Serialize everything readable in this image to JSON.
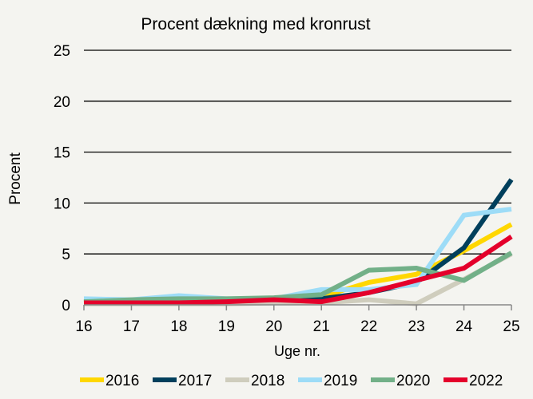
{
  "chart_data": {
    "type": "line",
    "title": "Procent dækning med kronrust",
    "xlabel": "Uge nr.",
    "ylabel": "Procent",
    "x": [
      16,
      17,
      18,
      19,
      20,
      21,
      22,
      23,
      24,
      25
    ],
    "ylim": [
      0,
      25
    ],
    "yticks": [
      0,
      5,
      10,
      15,
      20,
      25
    ],
    "grid": true,
    "legend": "bottom",
    "series": [
      {
        "name": "2016",
        "color": "#ffd700",
        "values": [
          0.2,
          0.3,
          0.4,
          0.4,
          0.5,
          0.8,
          2.2,
          3.0,
          5.3,
          7.9
        ]
      },
      {
        "name": "2017",
        "color": "#003f5c",
        "values": [
          0.2,
          0.3,
          0.4,
          0.4,
          0.5,
          0.6,
          1.2,
          2.2,
          5.6,
          12.3
        ]
      },
      {
        "name": "2018",
        "color": "#cfcdbd",
        "values": [
          0.1,
          0.1,
          0.1,
          0.1,
          0.2,
          0.2,
          0.5,
          0.1,
          2.5,
          5.0
        ]
      },
      {
        "name": "2019",
        "color": "#9ddcf7",
        "values": [
          0.6,
          0.5,
          0.9,
          0.6,
          0.6,
          1.5,
          1.5,
          2.0,
          8.8,
          9.4
        ]
      },
      {
        "name": "2020",
        "color": "#72b088",
        "values": [
          0.3,
          0.5,
          0.6,
          0.6,
          0.7,
          1.0,
          3.4,
          3.6,
          2.4,
          5.1
        ]
      },
      {
        "name": "2022",
        "color": "#e4002b",
        "values": [
          0.2,
          0.2,
          0.2,
          0.3,
          0.5,
          0.3,
          1.2,
          2.4,
          3.6,
          6.7
        ]
      }
    ]
  }
}
